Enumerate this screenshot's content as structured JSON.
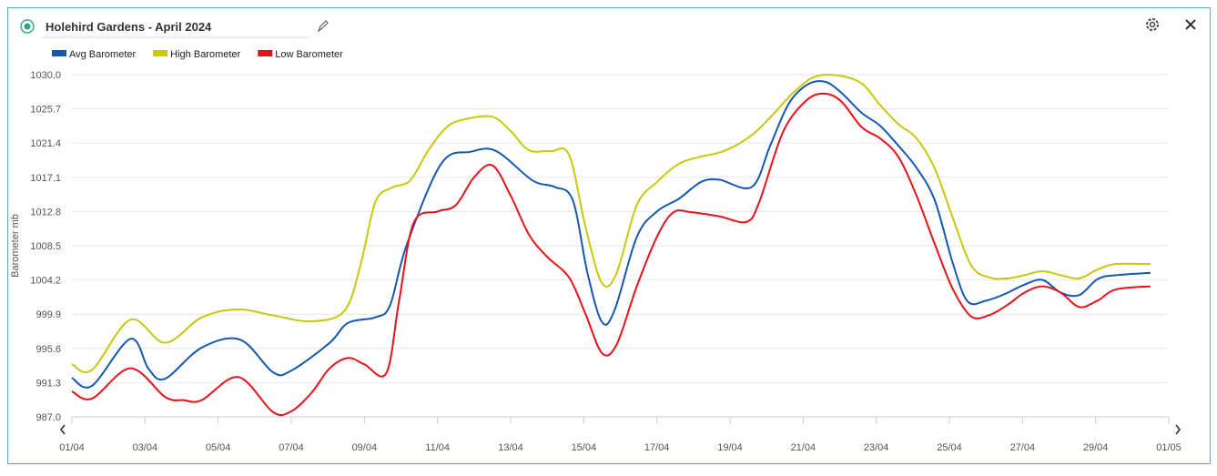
{
  "header": {
    "title": "Holehird Gardens - April 2024"
  },
  "chart_data": {
    "type": "line",
    "ylabel": "Barometer mb",
    "ylim": [
      987,
      1030
    ],
    "yticks": [
      {
        "value": 987,
        "label": "987.0"
      },
      991.3,
      995.6,
      999.9,
      1004.2,
      1008.5,
      1012.8,
      1017.1,
      1021.4,
      1025.7,
      {
        "value": 1030,
        "label": "1030.0"
      }
    ],
    "xlim": [
      0,
      30
    ],
    "xticks": [
      {
        "value": 0,
        "label": "01/04"
      },
      {
        "value": 2,
        "label": "03/04"
      },
      {
        "value": 4,
        "label": "05/04"
      },
      {
        "value": 6,
        "label": "07/04"
      },
      {
        "value": 8,
        "label": "09/04"
      },
      {
        "value": 10,
        "label": "11/04"
      },
      {
        "value": 12,
        "label": "13/04"
      },
      {
        "value": 14,
        "label": "15/04"
      },
      {
        "value": 16,
        "label": "17/04"
      },
      {
        "value": 18,
        "label": "19/04"
      },
      {
        "value": 20,
        "label": "21/04"
      },
      {
        "value": 22,
        "label": "23/04"
      },
      {
        "value": 24,
        "label": "25/04"
      },
      {
        "value": 26,
        "label": "27/04"
      },
      {
        "value": 28,
        "label": "29/04"
      },
      {
        "value": 30,
        "label": "01/05"
      }
    ],
    "grid": true,
    "series": [
      {
        "name": "Avg Barometer",
        "color": "#1558b0",
        "x": [
          0,
          0.55,
          1.6,
          2.1,
          2.55,
          3.55,
          4.6,
          5.5,
          6.0,
          7.05,
          7.55,
          8.3,
          8.7,
          9.15,
          10.1,
          10.9,
          11.6,
          12.6,
          13.2,
          13.7,
          14.1,
          14.5,
          14.85,
          15.45,
          16.0,
          16.6,
          17.2,
          17.7,
          18.6,
          19.1,
          19.6,
          20.1,
          20.6,
          21.05,
          21.6,
          22.1,
          22.6,
          23.1,
          23.6,
          24.1,
          24.5,
          25.0,
          25.5,
          26.05,
          26.55,
          27.05,
          27.55,
          28.05,
          28.55,
          29.5
        ],
        "values": [
          991.9,
          990.9,
          996.8,
          993.0,
          991.8,
          995.7,
          996.7,
          992.6,
          992.8,
          996.3,
          998.8,
          999.5,
          1001.0,
          1008.5,
          1018.8,
          1020.3,
          1020.4,
          1016.7,
          1015.9,
          1014.2,
          1005.1,
          998.9,
          1000.5,
          1009.6,
          1012.8,
          1014.4,
          1016.5,
          1016.8,
          1015.9,
          1021.1,
          1026.3,
          1028.7,
          1029.1,
          1027.7,
          1025.2,
          1023.6,
          1021.1,
          1018.3,
          1014.2,
          1006.2,
          1001.5,
          1001.6,
          1002.4,
          1003.6,
          1004.2,
          1002.6,
          1002.3,
          1004.3,
          1004.8,
          1005.1
        ]
      },
      {
        "name": "High Barometer",
        "color": "#c9c80a",
        "x": [
          0,
          0.55,
          1.6,
          2.55,
          3.55,
          4.55,
          5.55,
          6.55,
          7.45,
          7.9,
          8.3,
          8.75,
          9.25,
          9.75,
          10.25,
          10.75,
          11.5,
          12.0,
          12.5,
          13.1,
          13.6,
          14.05,
          14.5,
          14.9,
          15.45,
          16.0,
          16.6,
          17.2,
          17.7,
          18.2,
          18.7,
          19.2,
          19.7,
          20.3,
          20.95,
          21.6,
          22.1,
          22.6,
          23.1,
          23.6,
          24.1,
          24.6,
          25.1,
          25.6,
          26.05,
          26.55,
          27.05,
          27.55,
          28.05,
          28.55,
          29.5
        ],
        "values": [
          993.6,
          992.9,
          999.2,
          996.3,
          999.5,
          1000.5,
          999.7,
          999.0,
          1000.3,
          1006.2,
          1014.0,
          1015.8,
          1016.7,
          1020.5,
          1023.4,
          1024.4,
          1024.7,
          1022.9,
          1020.5,
          1020.4,
          1019.9,
          1010.8,
          1003.8,
          1005.1,
          1013.6,
          1016.5,
          1018.8,
          1019.7,
          1020.2,
          1021.2,
          1022.8,
          1025.1,
          1027.6,
          1029.7,
          1029.9,
          1028.9,
          1026.2,
          1023.8,
          1022.0,
          1018.2,
          1011.9,
          1006.0,
          1004.5,
          1004.4,
          1004.8,
          1005.3,
          1004.8,
          1004.4,
          1005.5,
          1006.2,
          1006.2
        ]
      },
      {
        "name": "Low Barometer",
        "color": "#e8101a",
        "x": [
          0,
          0.55,
          1.6,
          2.55,
          3.05,
          3.55,
          4.55,
          5.5,
          6.0,
          6.55,
          7.05,
          7.55,
          8.0,
          8.6,
          8.95,
          9.35,
          10.0,
          10.5,
          11.0,
          11.5,
          12.0,
          12.5,
          13.0,
          13.6,
          14.05,
          14.5,
          14.9,
          15.45,
          16.0,
          16.45,
          16.95,
          17.7,
          18.45,
          18.8,
          19.45,
          20.1,
          20.6,
          21.05,
          21.6,
          22.1,
          22.6,
          23.1,
          23.6,
          24.1,
          24.6,
          25.1,
          25.6,
          26.05,
          26.55,
          27.05,
          27.55,
          28.05,
          28.55,
          29.5
        ],
        "values": [
          990.2,
          989.3,
          993.1,
          989.5,
          989.1,
          989.1,
          992.0,
          987.6,
          987.7,
          990.0,
          993.1,
          994.4,
          993.6,
          992.5,
          1001.6,
          1011.4,
          1012.8,
          1013.6,
          1017.1,
          1018.6,
          1014.8,
          1009.9,
          1007.1,
          1004.5,
          999.9,
          995.0,
          996.1,
          1003.4,
          1009.6,
          1012.7,
          1012.7,
          1012.2,
          1011.5,
          1014.0,
          1022.8,
          1026.8,
          1027.6,
          1026.6,
          1023.4,
          1022.0,
          1019.7,
          1014.8,
          1008.7,
          1003.0,
          999.6,
          999.8,
          1001.1,
          1002.6,
          1003.4,
          1002.6,
          1000.8,
          1001.6,
          1003.0,
          1003.4
        ]
      }
    ]
  }
}
